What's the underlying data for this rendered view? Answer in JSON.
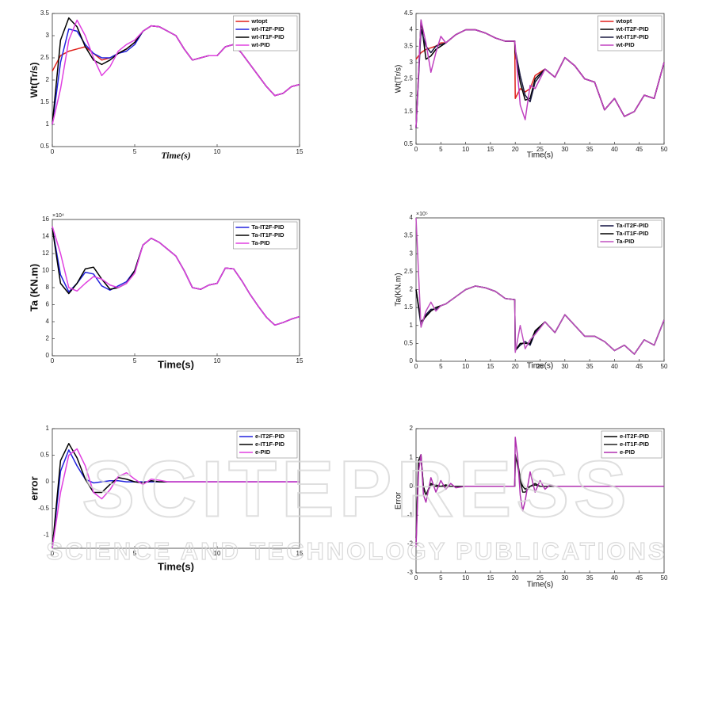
{
  "watermark": {
    "title": "SCITEPRESS",
    "subtitle": "SCIENCE AND TECHNOLOGY PUBLICATIONS"
  },
  "chart_data": [
    {
      "type": "line",
      "xlabel": "Time(s)",
      "ylabel": "Wt(Tr/s)",
      "legend": "upper right",
      "x": [
        0,
        0.5,
        1,
        1.5,
        2,
        2.5,
        3,
        3.5,
        4,
        4.5,
        5,
        5.5,
        6,
        6.5,
        7,
        7.5,
        8,
        8.5,
        9,
        9.5,
        10,
        10.5,
        11,
        11.5,
        12,
        12.5,
        13,
        13.5,
        14,
        14.5,
        15
      ],
      "xlim": [
        0,
        15
      ],
      "xticks": [
        0,
        5,
        10,
        15
      ],
      "ylim": [
        0.5,
        3.5
      ],
      "yticks": [
        0.5,
        1,
        1.5,
        2,
        2.5,
        3,
        3.5
      ],
      "series": [
        {
          "name": "wtopt",
          "color": "#e0201b",
          "values": [
            2.2,
            2.55,
            2.65,
            2.7,
            2.75,
            2.6,
            2.45,
            2.5,
            2.6,
            2.7,
            2.85,
            3.1,
            3.22,
            3.2,
            3.1,
            3.0,
            2.7,
            2.45,
            2.5,
            2.55,
            2.55,
            2.75,
            2.8,
            2.6,
            2.35,
            2.1,
            1.85,
            1.65,
            1.7,
            1.85,
            1.9
          ]
        },
        {
          "name": "wt-IT2F-PID",
          "color": "#2222dd",
          "values": [
            1.0,
            2.4,
            3.15,
            3.1,
            2.8,
            2.6,
            2.5,
            2.5,
            2.6,
            2.65,
            2.8,
            3.1,
            3.22,
            3.2,
            3.1,
            3.0,
            2.7,
            2.45,
            2.5,
            2.55,
            2.55,
            2.75,
            2.8,
            2.6,
            2.35,
            2.1,
            1.85,
            1.65,
            1.7,
            1.85,
            1.9
          ]
        },
        {
          "name": "wt-IT1F-PID",
          "color": "#000000",
          "values": [
            1.0,
            2.9,
            3.4,
            3.2,
            2.75,
            2.45,
            2.35,
            2.45,
            2.6,
            2.7,
            2.85,
            3.1,
            3.22,
            3.2,
            3.1,
            3.0,
            2.7,
            2.45,
            2.5,
            2.55,
            2.55,
            2.75,
            2.8,
            2.6,
            2.35,
            2.1,
            1.85,
            1.65,
            1.7,
            1.85,
            1.9
          ]
        },
        {
          "name": "wt-PID",
          "color": "#e040e0",
          "values": [
            1.0,
            1.8,
            2.9,
            3.35,
            3.0,
            2.5,
            2.1,
            2.3,
            2.65,
            2.8,
            2.9,
            3.1,
            3.22,
            3.2,
            3.1,
            3.0,
            2.7,
            2.45,
            2.5,
            2.55,
            2.55,
            2.75,
            2.8,
            2.6,
            2.35,
            2.1,
            1.85,
            1.65,
            1.7,
            1.85,
            1.9
          ]
        }
      ]
    },
    {
      "type": "line",
      "xlabel": "Time(s)",
      "ylabel": "Wt(Tr/s)",
      "legend": "upper right",
      "x": [
        0,
        1,
        2,
        3,
        4,
        5,
        6,
        8,
        10,
        12,
        14,
        16,
        18,
        19.9,
        20,
        21,
        22,
        23,
        24,
        26,
        28,
        30,
        32,
        34,
        36,
        38,
        40,
        42,
        44,
        46,
        48,
        50
      ],
      "xlim": [
        0,
        50
      ],
      "xticks": [
        0,
        5,
        10,
        15,
        20,
        25,
        30,
        35,
        40,
        45,
        50
      ],
      "ylim": [
        0.5,
        4.5
      ],
      "yticks": [
        0.5,
        1,
        1.5,
        2,
        2.5,
        3,
        3.5,
        4,
        4.5
      ],
      "series": [
        {
          "name": "wtopt",
          "color": "#e0201b",
          "values": [
            3.1,
            3.3,
            3.4,
            3.45,
            3.5,
            3.6,
            3.6,
            3.85,
            4.0,
            4.0,
            3.9,
            3.75,
            3.65,
            3.65,
            1.9,
            2.2,
            2.1,
            2.2,
            2.6,
            2.8,
            2.55,
            3.15,
            2.9,
            2.5,
            2.4,
            1.55,
            1.9,
            1.35,
            1.5,
            2.0,
            1.9,
            3.0
          ]
        },
        {
          "name": "wt-IT2F-PID",
          "color": "#000000",
          "values": [
            1.0,
            4.3,
            3.1,
            3.2,
            3.4,
            3.5,
            3.6,
            3.85,
            4.0,
            4.0,
            3.9,
            3.75,
            3.65,
            3.65,
            3.3,
            2.4,
            1.85,
            1.9,
            2.5,
            2.8,
            2.55,
            3.15,
            2.9,
            2.5,
            2.4,
            1.55,
            1.9,
            1.35,
            1.5,
            2.0,
            1.9,
            3.0
          ]
        },
        {
          "name": "wt-IT1F-PID",
          "color": "#1a1a40",
          "values": [
            1.0,
            4.0,
            3.5,
            3.3,
            3.5,
            3.55,
            3.6,
            3.85,
            4.0,
            4.0,
            3.9,
            3.75,
            3.65,
            3.65,
            3.4,
            2.6,
            2.0,
            1.8,
            2.4,
            2.8,
            2.55,
            3.15,
            2.9,
            2.5,
            2.4,
            1.55,
            1.9,
            1.35,
            1.5,
            2.0,
            1.9,
            3.0
          ]
        },
        {
          "name": "wt-PID",
          "color": "#c040c0",
          "values": [
            1.0,
            4.3,
            3.6,
            2.7,
            3.3,
            3.8,
            3.6,
            3.85,
            4.0,
            4.0,
            3.9,
            3.75,
            3.65,
            3.65,
            3.5,
            1.7,
            1.25,
            2.3,
            2.2,
            2.8,
            2.55,
            3.15,
            2.9,
            2.5,
            2.4,
            1.55,
            1.9,
            1.35,
            1.5,
            2.0,
            1.9,
            3.0
          ]
        }
      ]
    },
    {
      "type": "line",
      "xlabel": "Time(s)",
      "ylabel": "Ta (KN.m)",
      "y_exponent": "×10⁴",
      "legend": "upper right",
      "x": [
        0,
        0.5,
        1,
        1.5,
        2,
        2.5,
        3,
        3.5,
        4,
        4.5,
        5,
        5.5,
        6,
        6.5,
        7,
        7.5,
        8,
        8.5,
        9,
        9.5,
        10,
        10.5,
        11,
        11.5,
        12,
        12.5,
        13,
        13.5,
        14,
        14.5,
        15
      ],
      "xlim": [
        0,
        15
      ],
      "xticks": [
        0,
        5,
        10,
        15
      ],
      "ylim": [
        0,
        16
      ],
      "yticks": [
        0,
        2,
        4,
        6,
        8,
        10,
        12,
        14,
        16
      ],
      "series": [
        {
          "name": "Ta-IT2F-PID",
          "color": "#2222dd",
          "values": [
            15,
            9.5,
            7.5,
            8.5,
            9.8,
            9.6,
            8.2,
            7.7,
            8.2,
            8.7,
            10,
            13,
            13.8,
            13.3,
            12.5,
            11.7,
            10,
            8,
            7.8,
            8.3,
            8.5,
            10.3,
            10.2,
            8.8,
            7.2,
            5.8,
            4.5,
            3.6,
            3.9,
            4.3,
            4.6
          ]
        },
        {
          "name": "Ta-IT1F-PID",
          "color": "#000000",
          "values": [
            15,
            8.5,
            7.3,
            8.5,
            10.2,
            10.4,
            9,
            7.8,
            8.0,
            8.5,
            10,
            13,
            13.8,
            13.3,
            12.5,
            11.7,
            10,
            8,
            7.8,
            8.3,
            8.5,
            10.3,
            10.2,
            8.8,
            7.2,
            5.8,
            4.5,
            3.6,
            3.9,
            4.3,
            4.6
          ]
        },
        {
          "name": "Ta-PID",
          "color": "#e040e0",
          "values": [
            15.2,
            12,
            8,
            7.6,
            8.5,
            9.3,
            9.0,
            8.3,
            8.0,
            8.5,
            9.7,
            13,
            13.8,
            13.3,
            12.5,
            11.7,
            10,
            8,
            7.8,
            8.3,
            8.5,
            10.3,
            10.2,
            8.8,
            7.2,
            5.8,
            4.5,
            3.6,
            3.9,
            4.3,
            4.6
          ]
        }
      ]
    },
    {
      "type": "line",
      "xlabel": "Time(s)",
      "ylabel": "Ta(KN.m)",
      "y_exponent": "×10⁵",
      "legend": "upper right",
      "x": [
        0,
        1,
        2,
        3,
        4,
        5,
        6,
        8,
        10,
        12,
        14,
        16,
        18,
        19.9,
        20,
        21,
        22,
        23,
        24,
        26,
        28,
        30,
        32,
        34,
        36,
        38,
        40,
        42,
        44,
        46,
        48,
        50
      ],
      "xlim": [
        0,
        50
      ],
      "xticks": [
        0,
        5,
        10,
        15,
        20,
        25,
        30,
        35,
        40,
        45,
        50
      ],
      "ylim": [
        0,
        4
      ],
      "yticks": [
        0,
        0.5,
        1,
        1.5,
        2,
        2.5,
        3,
        3.5,
        4
      ],
      "series": [
        {
          "name": "Ta-IT2F-PID",
          "color": "#101040",
          "values": [
            2,
            1.0,
            1.3,
            1.45,
            1.45,
            1.55,
            1.6,
            1.8,
            2.0,
            2.1,
            2.05,
            1.95,
            1.75,
            1.72,
            0.3,
            0.45,
            0.55,
            0.45,
            0.8,
            1.1,
            0.8,
            1.3,
            1.0,
            0.7,
            0.7,
            0.55,
            0.3,
            0.45,
            0.2,
            0.6,
            0.45,
            1.15
          ]
        },
        {
          "name": "Ta-IT1F-PID",
          "color": "#000000",
          "values": [
            2,
            1.1,
            1.25,
            1.4,
            1.5,
            1.55,
            1.6,
            1.8,
            2.0,
            2.1,
            2.05,
            1.95,
            1.75,
            1.72,
            0.3,
            0.5,
            0.5,
            0.5,
            0.85,
            1.1,
            0.8,
            1.3,
            1.0,
            0.7,
            0.7,
            0.55,
            0.3,
            0.45,
            0.2,
            0.6,
            0.45,
            1.15
          ]
        },
        {
          "name": "Ta-PID",
          "color": "#c050c0",
          "values": [
            4.0,
            0.95,
            1.4,
            1.65,
            1.4,
            1.55,
            1.6,
            1.8,
            2.0,
            2.1,
            2.05,
            1.95,
            1.75,
            1.72,
            0.25,
            1.0,
            0.35,
            0.6,
            0.75,
            1.1,
            0.8,
            1.3,
            1.0,
            0.7,
            0.7,
            0.55,
            0.3,
            0.45,
            0.2,
            0.6,
            0.45,
            1.15
          ]
        }
      ]
    },
    {
      "type": "line",
      "xlabel": "Time(s)",
      "ylabel": "error",
      "legend": "upper right",
      "x": [
        0,
        0.5,
        1,
        1.5,
        2,
        2.5,
        3,
        3.5,
        4,
        4.5,
        5,
        5.5,
        6,
        6.5,
        7,
        7.5,
        8,
        8.5,
        9,
        9.5,
        10,
        10.5,
        11,
        11.5,
        12,
        12.5,
        13,
        13.5,
        14,
        14.5,
        15
      ],
      "xlim": [
        0,
        15
      ],
      "xticks": [
        0,
        5,
        10,
        15
      ],
      "ylim": [
        -1.25,
        1
      ],
      "yticks": [
        -1,
        -0.5,
        0,
        0.5,
        1
      ],
      "series": [
        {
          "name": "e-IT2F-PID",
          "color": "#2222dd",
          "values": [
            -1.25,
            0.2,
            0.6,
            0.3,
            0.05,
            -0.02,
            0,
            0.02,
            0.02,
            0,
            0,
            0,
            0,
            0,
            0,
            0,
            0,
            0,
            0,
            0,
            0,
            0,
            0,
            0,
            0,
            0,
            0,
            0,
            0,
            0,
            0
          ]
        },
        {
          "name": "e-IT1F-PID",
          "color": "#000000",
          "values": [
            -1.25,
            0.4,
            0.72,
            0.45,
            0.05,
            -0.2,
            -0.2,
            -0.05,
            0.08,
            0.05,
            0,
            -0.02,
            0.02,
            0,
            0,
            0,
            0,
            0,
            0,
            0,
            0,
            0,
            0,
            0,
            0,
            0,
            0,
            0,
            0,
            0,
            0
          ]
        },
        {
          "name": "e-PID",
          "color": "#e040e0",
          "values": [
            -1.25,
            -0.2,
            0.5,
            0.62,
            0.3,
            -0.2,
            -0.32,
            -0.15,
            0.1,
            0.17,
            0.05,
            -0.05,
            0.05,
            0.03,
            0,
            0,
            0,
            0,
            0,
            0,
            0,
            0,
            0,
            0,
            0,
            0,
            0,
            0,
            0,
            0,
            0
          ]
        }
      ]
    },
    {
      "type": "line",
      "xlabel": "Time(s)",
      "ylabel": "Error",
      "legend": "upper right",
      "x": [
        0,
        0.5,
        1,
        1.5,
        2,
        3,
        4,
        5,
        6,
        7,
        8,
        10,
        15,
        19.9,
        20,
        20.5,
        21,
        21.5,
        22,
        23,
        24,
        25,
        26,
        27,
        28,
        30,
        35,
        40,
        45,
        50
      ],
      "xlim": [
        0,
        50
      ],
      "xticks": [
        0,
        5,
        10,
        15,
        20,
        25,
        30,
        35,
        40,
        45,
        50
      ],
      "ylim": [
        -3,
        2
      ],
      "yticks": [
        -3,
        -2,
        -1,
        0,
        1,
        2
      ],
      "series": [
        {
          "name": "e-IT2F-PID",
          "color": "#000000",
          "values": [
            -2,
            0.9,
            1.0,
            0,
            -0.3,
            0.1,
            0,
            0,
            0.05,
            0,
            0,
            0,
            0,
            0,
            1.0,
            0.8,
            0.3,
            0,
            -0.1,
            0,
            0.05,
            0,
            0,
            0,
            0,
            0,
            0,
            0,
            0,
            0
          ]
        },
        {
          "name": "e-IT1F-PID",
          "color": "#202020",
          "values": [
            -1.8,
            0.9,
            1.1,
            -0.1,
            -0.3,
            0.05,
            0.05,
            0,
            0,
            0,
            0,
            0,
            0,
            0,
            1.1,
            0.7,
            0.2,
            -0.2,
            -0.2,
            0,
            0.1,
            0,
            0,
            0,
            0,
            0,
            0,
            0,
            0,
            0
          ]
        },
        {
          "name": "e-PID",
          "color": "#b030b0",
          "values": [
            -2.1,
            0.5,
            1.1,
            -0.3,
            -0.55,
            0.3,
            -0.2,
            0.2,
            -0.1,
            0.1,
            -0.05,
            0,
            0,
            0,
            1.7,
            1.0,
            -0.3,
            -0.85,
            -0.5,
            0.5,
            -0.2,
            0.2,
            -0.1,
            0.05,
            0,
            0,
            0,
            0,
            0,
            0
          ]
        }
      ]
    }
  ]
}
